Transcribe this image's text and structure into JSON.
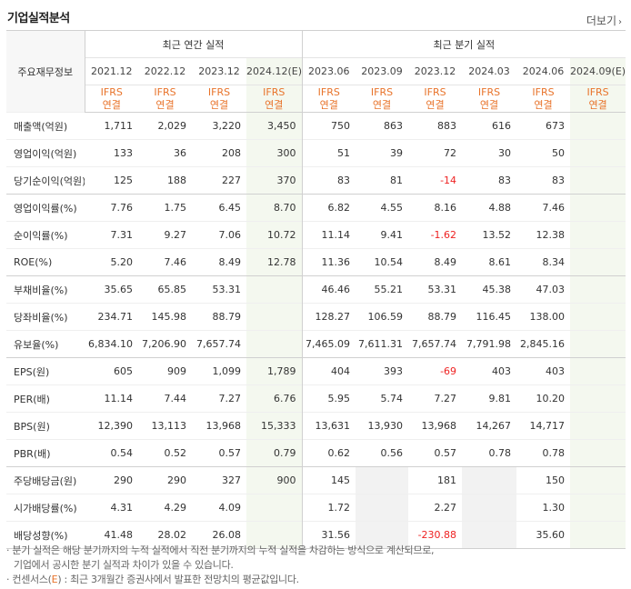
{
  "section_title": "기업실적분석",
  "more_label": "더보기",
  "table": {
    "row_header_label": "주요재무정보",
    "annual_group": "최근 연간 실적",
    "quarterly_group": "최근 분기 실적",
    "periods": [
      "2021.12",
      "2022.12",
      "2023.12",
      "2024.12(E)",
      "2023.06",
      "2023.09",
      "2023.12",
      "2024.03",
      "2024.06",
      "2024.09(E)"
    ],
    "ifrs_top": "IFRS",
    "ifrs_bottom": "연결",
    "rows": [
      {
        "label": "매출액(억원)",
        "values": [
          "1,711",
          "2,029",
          "3,220",
          "3,450",
          "750",
          "863",
          "883",
          "616",
          "673",
          ""
        ]
      },
      {
        "label": "영업이익(억원)",
        "values": [
          "133",
          "36",
          "208",
          "300",
          "51",
          "39",
          "72",
          "30",
          "50",
          ""
        ]
      },
      {
        "label": "당기순이익(억원)",
        "values": [
          "125",
          "188",
          "227",
          "370",
          "83",
          "81",
          "-14",
          "83",
          "83",
          ""
        ]
      },
      {
        "label": "영업이익률(%)",
        "values": [
          "7.76",
          "1.75",
          "6.45",
          "8.70",
          "6.82",
          "4.55",
          "8.16",
          "4.88",
          "7.46",
          ""
        ]
      },
      {
        "label": "순이익률(%)",
        "values": [
          "7.31",
          "9.27",
          "7.06",
          "10.72",
          "11.14",
          "9.41",
          "-1.62",
          "13.52",
          "12.38",
          ""
        ]
      },
      {
        "label": "ROE(%)",
        "values": [
          "5.20",
          "7.46",
          "8.49",
          "12.78",
          "11.36",
          "10.54",
          "8.49",
          "8.61",
          "8.34",
          ""
        ]
      },
      {
        "label": "부채비율(%)",
        "values": [
          "35.65",
          "65.85",
          "53.31",
          "",
          "46.46",
          "55.21",
          "53.31",
          "45.38",
          "47.03",
          ""
        ]
      },
      {
        "label": "당좌비율(%)",
        "values": [
          "234.71",
          "145.98",
          "88.79",
          "",
          "128.27",
          "106.59",
          "88.79",
          "116.45",
          "138.00",
          ""
        ]
      },
      {
        "label": "유보율(%)",
        "values": [
          "6,834.10",
          "7,206.90",
          "7,657.74",
          "",
          "7,465.09",
          "7,611.31",
          "7,657.74",
          "7,791.98",
          "2,845.16",
          ""
        ]
      },
      {
        "label": "EPS(원)",
        "values": [
          "605",
          "909",
          "1,099",
          "1,789",
          "404",
          "393",
          "-69",
          "403",
          "403",
          ""
        ]
      },
      {
        "label": "PER(배)",
        "values": [
          "11.14",
          "7.44",
          "7.27",
          "6.76",
          "5.95",
          "5.74",
          "7.27",
          "9.81",
          "10.20",
          ""
        ]
      },
      {
        "label": "BPS(원)",
        "values": [
          "12,390",
          "13,113",
          "13,968",
          "15,333",
          "13,631",
          "13,930",
          "13,968",
          "14,267",
          "14,717",
          ""
        ]
      },
      {
        "label": "PBR(배)",
        "values": [
          "0.54",
          "0.52",
          "0.57",
          "0.79",
          "0.62",
          "0.56",
          "0.57",
          "0.78",
          "0.78",
          ""
        ]
      },
      {
        "label": "주당배당금(원)",
        "values": [
          "290",
          "290",
          "327",
          "900",
          "145",
          "",
          "181",
          "",
          "150",
          ""
        ]
      },
      {
        "label": "시가배당률(%)",
        "values": [
          "4.31",
          "4.29",
          "4.09",
          "",
          "1.72",
          "",
          "2.27",
          "",
          "1.30",
          ""
        ]
      },
      {
        "label": "배당성향(%)",
        "values": [
          "41.48",
          "28.02",
          "26.08",
          "",
          "31.56",
          "",
          "-230.88",
          "",
          "35.60",
          ""
        ]
      }
    ]
  },
  "notes": {
    "line1": "· 분기 실적은 해당 분기까지의 누적 실적에서 직전 분기까지의 누적 실적을 차감하는 방식으로 계산되므로,",
    "line2": "기업에서 공시한 분기 실적과 차이가 있을 수 있습니다.",
    "line3_prefix": "· 컨센서스(",
    "line3_e": "E",
    "line3_suffix": ") : 최근 3개월간 증권사에서 발표한 전망치의 평균값입니다."
  }
}
